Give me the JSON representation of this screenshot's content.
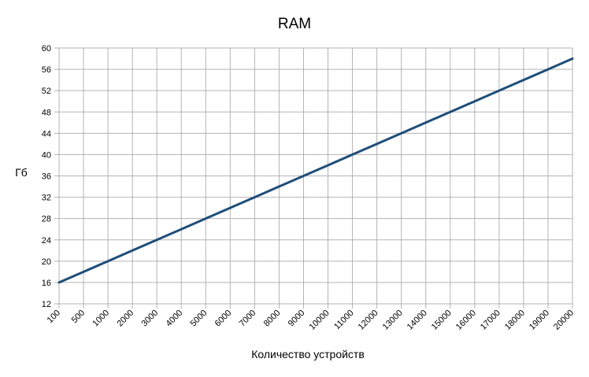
{
  "chart_data": {
    "type": "line",
    "title": "RAM",
    "xlabel": "Количество устройств",
    "ylabel": "Гб",
    "categories": [
      "100",
      "500",
      "1000",
      "2000",
      "3000",
      "4000",
      "5000",
      "6000",
      "7000",
      "8000",
      "9000",
      "10000",
      "11000",
      "12000",
      "13000",
      "14000",
      "15000",
      "16000",
      "17000",
      "18000",
      "19000",
      "20000"
    ],
    "series": [
      {
        "values": [
          16,
          18,
          20,
          22,
          24,
          26,
          28,
          30,
          32,
          34,
          36,
          38,
          40,
          42,
          44,
          46,
          48,
          50,
          52,
          54,
          56,
          58
        ],
        "color": "#1f4e79"
      }
    ],
    "ylim": [
      12,
      60
    ],
    "yticks": [
      12,
      16,
      20,
      24,
      28,
      32,
      36,
      40,
      44,
      48,
      52,
      56,
      60
    ],
    "grid": true,
    "legend": "none",
    "colors": {
      "grid": "#b3b3b3",
      "axis": "#b3b3b3",
      "line": "#1f4e79"
    }
  }
}
